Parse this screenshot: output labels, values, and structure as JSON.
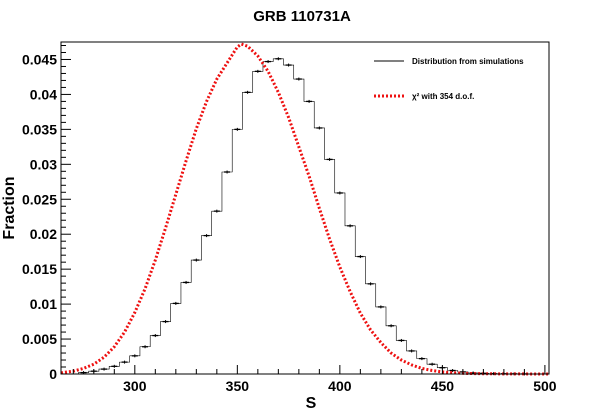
{
  "chart_data": {
    "type": "line",
    "title": "GRB 110731A",
    "xlabel": "S",
    "ylabel": "Fraction",
    "xlim": [
      264,
      502
    ],
    "ylim": [
      0,
      0.0475
    ],
    "x_ticks": [
      300,
      350,
      400,
      450,
      500
    ],
    "x_tick_labels": [
      "300",
      "350",
      "400",
      "450",
      "500"
    ],
    "y_ticks": [
      0,
      0.005,
      0.01,
      0.015,
      0.02,
      0.025,
      0.03,
      0.035,
      0.04,
      0.045
    ],
    "y_tick_labels": [
      "0",
      "0.005",
      "0.01",
      "0.015",
      "0.02",
      "0.025",
      "0.03",
      "0.035",
      "0.04",
      "0.045"
    ],
    "grid": false,
    "legend_position": "top-right",
    "series": [
      {
        "name": "Distribution from simulations",
        "style": "black histogram with error bars",
        "color": "#000000",
        "x": [
          275,
          280,
          285,
          290,
          295,
          300,
          305,
          310,
          315,
          320,
          325,
          330,
          335,
          340,
          345,
          350,
          355,
          360,
          365,
          370,
          375,
          380,
          385,
          390,
          395,
          400,
          405,
          410,
          415,
          420,
          425,
          430,
          435,
          440,
          445,
          450,
          455,
          460,
          465,
          470,
          475,
          480,
          485,
          490
        ],
        "y": [
          0.0002,
          0.0004,
          0.0007,
          0.0011,
          0.0017,
          0.0026,
          0.0039,
          0.0055,
          0.0075,
          0.0101,
          0.0131,
          0.0163,
          0.0198,
          0.0233,
          0.0289,
          0.035,
          0.0403,
          0.0433,
          0.0447,
          0.0451,
          0.0442,
          0.0422,
          0.039,
          0.0352,
          0.0307,
          0.0259,
          0.0212,
          0.0168,
          0.0129,
          0.0096,
          0.0069,
          0.0048,
          0.0033,
          0.0022,
          0.0014,
          0.0009,
          0.0005,
          0.0003,
          0.00015,
          0.0001,
          5e-05,
          3e-05,
          2e-05,
          1e-05
        ]
      },
      {
        "name": "χ² with 354 d.o.f.",
        "style": "red dotted curve",
        "color": "#ee1111",
        "x": [
          264,
          270,
          275,
          280,
          285,
          290,
          295,
          300,
          305,
          310,
          315,
          320,
          325,
          330,
          335,
          340,
          345,
          350,
          352,
          355,
          360,
          365,
          370,
          375,
          380,
          385,
          390,
          395,
          400,
          405,
          410,
          415,
          420,
          425,
          430,
          435,
          440,
          445,
          450,
          455,
          460,
          465,
          470,
          475,
          480,
          490,
          500,
          502
        ],
        "y": [
          0.00017,
          0.0004,
          0.0008,
          0.0014,
          0.0024,
          0.0039,
          0.006,
          0.0088,
          0.0122,
          0.0163,
          0.0209,
          0.0257,
          0.0305,
          0.0351,
          0.039,
          0.0422,
          0.0445,
          0.0468,
          0.0472,
          0.0469,
          0.0455,
          0.0433,
          0.0403,
          0.0367,
          0.0325,
          0.0283,
          0.0237,
          0.0193,
          0.0153,
          0.0118,
          0.0087,
          0.0063,
          0.0045,
          0.003,
          0.002,
          0.0013,
          0.0008,
          0.0005,
          0.0003,
          0.00018,
          0.0001,
          6e-05,
          4e-05,
          3e-05,
          2e-05,
          1e-05,
          0.0,
          0.0
        ]
      }
    ]
  },
  "colors": {
    "frame": "#000000",
    "histogram": "#000000",
    "chi2": "#ee1111"
  }
}
